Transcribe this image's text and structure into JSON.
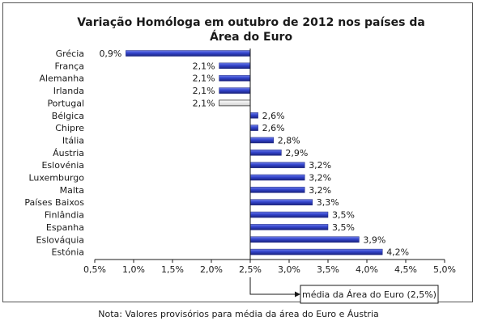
{
  "chart_data": {
    "type": "bar",
    "orientation": "horizontal",
    "title_line1": "Variação Homóloga em outubro de 2012 nos países da",
    "title_line2": "Área do Euro",
    "categories": [
      "Grécia",
      "França",
      "Alemanha",
      "Irlanda",
      "Portugal",
      "Bélgica",
      "Chipre",
      "Itália",
      "Áustria",
      "Eslovénia",
      "Luxemburgo",
      "Malta",
      "Países Baixos",
      "Finlândia",
      "Espanha",
      "Eslováquia",
      "Estónia"
    ],
    "values": [
      0.9,
      2.1,
      2.1,
      2.1,
      2.1,
      2.6,
      2.6,
      2.8,
      2.9,
      3.2,
      3.2,
      3.2,
      3.3,
      3.5,
      3.5,
      3.9,
      4.2
    ],
    "value_labels": [
      "0,9%",
      "2,1%",
      "2,1%",
      "2,1%",
      "2,1%",
      "2,6%",
      "2,6%",
      "2,8%",
      "2,9%",
      "3,2%",
      "3,2%",
      "3,2%",
      "3,3%",
      "3,5%",
      "3,5%",
      "3,9%",
      "4,2%"
    ],
    "highlight_category": "Portugal",
    "baseline": 2.5,
    "xlim": [
      0.5,
      5.0
    ],
    "xticks": [
      0.5,
      1.0,
      1.5,
      2.0,
      2.5,
      3.0,
      3.5,
      4.0,
      4.5,
      5.0
    ],
    "xtick_labels": [
      "0,5%",
      "1,0%",
      "1,5%",
      "2,0%",
      "2,5%",
      "3,0%",
      "3,5%",
      "4,0%",
      "4,5%",
      "5,0%"
    ],
    "grid": false,
    "colors": {
      "bar": "#3344cc",
      "bar_dark": "#1a237e",
      "highlight": "#e8e8e8",
      "highlight_border": "#333333"
    },
    "annotation": "média da Área do Euro (2,5%)"
  },
  "note": "Nota: Valores provisórios para média da área do Euro e Áustria"
}
